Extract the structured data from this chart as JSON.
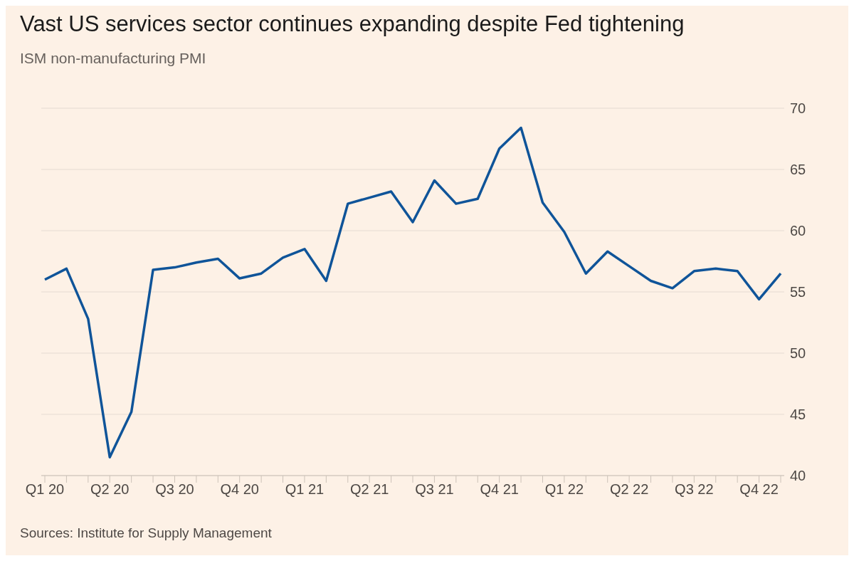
{
  "chart_data": {
    "type": "line",
    "title": "Vast US services sector continues expanding despite Fed tightening",
    "subtitle": "ISM non-manufacturing PMI",
    "annotations": [
      "Sources: Institute for Supply Management"
    ],
    "categories": [
      "Q1 20",
      null,
      null,
      "Q2 20",
      null,
      null,
      "Q3 20",
      null,
      null,
      "Q4 20",
      null,
      null,
      "Q1 21",
      null,
      null,
      "Q2 21",
      null,
      null,
      "Q3 21",
      null,
      null,
      "Q4 21",
      null,
      null,
      "Q1 22",
      null,
      null,
      "Q2 22",
      null,
      null,
      "Q3 22",
      null,
      null,
      "Q4 22",
      null
    ],
    "series": [
      {
        "color": "#0f5499",
        "values": [
          56.0,
          56.9,
          52.8,
          41.5,
          45.2,
          56.8,
          57.0,
          57.4,
          57.7,
          56.1,
          56.5,
          57.8,
          58.5,
          55.9,
          62.2,
          62.7,
          63.2,
          60.7,
          64.1,
          62.2,
          62.6,
          66.7,
          68.4,
          62.3,
          59.9,
          56.5,
          58.3,
          57.1,
          55.9,
          55.3,
          56.7,
          56.9,
          56.7,
          54.4,
          56.5
        ]
      }
    ],
    "ylim": [
      40,
      70
    ],
    "yticks": [
      40,
      45,
      50,
      55,
      60,
      65,
      70
    ],
    "grid": "y",
    "legend": false,
    "marker": "none",
    "line_style": "solid"
  }
}
